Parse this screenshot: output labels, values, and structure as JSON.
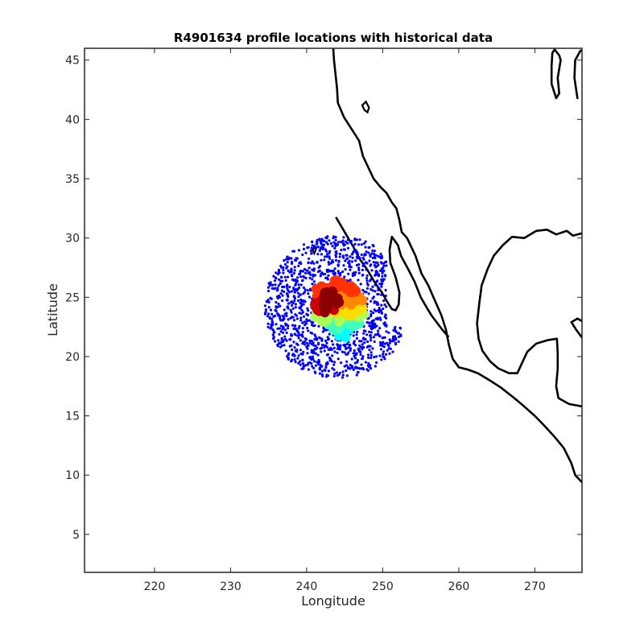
{
  "chart_data": {
    "type": "scatter",
    "title": "R4901634 profile locations with historical data",
    "xlabel": "Longitude",
    "ylabel": "Latitude",
    "xlim": [
      210.8,
      276.2
    ],
    "ylim": [
      1.8,
      46.0
    ],
    "xticks": [
      220,
      230,
      240,
      250,
      260,
      270
    ],
    "yticks": [
      5,
      10,
      15,
      20,
      25,
      30,
      35,
      40,
      45
    ],
    "grid": false,
    "legend": "none",
    "colors": {
      "historical": "#0000ff",
      "coastline": "#000000",
      "colormap": [
        "#00ffff",
        "#44ffbb",
        "#aaff55",
        "#ffdd00",
        "#ff8800",
        "#ff3300",
        "#cc0000",
        "#8b0000"
      ]
    },
    "historical_region": {
      "center": [
        244.0,
        24.2
      ],
      "radius_lon": 9.5,
      "radius_lat": 6.0,
      "approx_points": 1400
    },
    "profile_track": [
      {
        "lon": 244.6,
        "lat": 22.0,
        "c": 0.02
      },
      {
        "lon": 245.3,
        "lat": 22.3,
        "c": 0.06
      },
      {
        "lon": 244.0,
        "lat": 22.6,
        "c": 0.1
      },
      {
        "lon": 245.8,
        "lat": 22.8,
        "c": 0.14
      },
      {
        "lon": 246.4,
        "lat": 23.1,
        "c": 0.18
      },
      {
        "lon": 243.4,
        "lat": 23.0,
        "c": 0.2
      },
      {
        "lon": 242.6,
        "lat": 23.3,
        "c": 0.24
      },
      {
        "lon": 244.8,
        "lat": 23.3,
        "c": 0.27
      },
      {
        "lon": 246.9,
        "lat": 23.6,
        "c": 0.3
      },
      {
        "lon": 241.8,
        "lat": 23.7,
        "c": 0.33
      },
      {
        "lon": 245.6,
        "lat": 23.8,
        "c": 0.36
      },
      {
        "lon": 247.1,
        "lat": 24.2,
        "c": 0.4
      },
      {
        "lon": 243.8,
        "lat": 24.0,
        "c": 0.42
      },
      {
        "lon": 246.2,
        "lat": 24.4,
        "c": 0.46
      },
      {
        "lon": 245.2,
        "lat": 24.7,
        "c": 0.5
      },
      {
        "lon": 246.8,
        "lat": 25.0,
        "c": 0.54
      },
      {
        "lon": 244.6,
        "lat": 25.2,
        "c": 0.58
      },
      {
        "lon": 243.6,
        "lat": 25.5,
        "c": 0.62
      },
      {
        "lon": 245.8,
        "lat": 25.8,
        "c": 0.66
      },
      {
        "lon": 242.6,
        "lat": 25.8,
        "c": 0.7
      },
      {
        "lon": 244.2,
        "lat": 26.1,
        "c": 0.74
      },
      {
        "lon": 241.6,
        "lat": 25.4,
        "c": 0.78
      },
      {
        "lon": 242.2,
        "lat": 24.8,
        "c": 0.82
      },
      {
        "lon": 243.0,
        "lat": 24.3,
        "c": 0.86
      },
      {
        "lon": 241.7,
        "lat": 24.2,
        "c": 0.9
      },
      {
        "lon": 242.8,
        "lat": 25.2,
        "c": 0.94
      },
      {
        "lon": 243.6,
        "lat": 24.7,
        "c": 0.97
      },
      {
        "lon": 242.3,
        "lat": 24.1,
        "c": 1.0
      }
    ],
    "coastlines": [
      [
        [
          243.5,
          46.0
        ],
        [
          243.6,
          45.0
        ],
        [
          243.8,
          43.8
        ],
        [
          244.0,
          42.6
        ],
        [
          244.1,
          41.4
        ],
        [
          244.9,
          40.2
        ],
        [
          245.9,
          39.2
        ],
        [
          246.9,
          38.2
        ],
        [
          247.4,
          36.9
        ],
        [
          248.8,
          35.0
        ],
        [
          249.7,
          34.3
        ],
        [
          250.5,
          33.8
        ],
        [
          251.2,
          33.0
        ],
        [
          251.8,
          32.5
        ],
        [
          252.2,
          31.5
        ],
        [
          252.5,
          30.5
        ],
        [
          253.2,
          30.0
        ],
        [
          254.3,
          28.5
        ],
        [
          255.1,
          27.0
        ],
        [
          256.0,
          26.0
        ],
        [
          256.8,
          24.8
        ],
        [
          257.7,
          23.5
        ],
        [
          258.3,
          22.3
        ],
        [
          258.7,
          21.0
        ],
        [
          259.2,
          19.8
        ],
        [
          260.0,
          19.1
        ],
        [
          261.2,
          18.9
        ],
        [
          262.5,
          18.6
        ],
        [
          263.8,
          18.1
        ],
        [
          265.5,
          17.4
        ],
        [
          267.1,
          16.6
        ],
        [
          268.4,
          15.9
        ],
        [
          270.0,
          15.0
        ],
        [
          271.2,
          14.2
        ],
        [
          272.5,
          13.3
        ],
        [
          273.8,
          12.3
        ],
        [
          274.8,
          11.0
        ],
        [
          275.3,
          10.0
        ],
        [
          276.2,
          9.4
        ]
      ],
      [
        [
          251.2,
          30.1
        ],
        [
          252.0,
          29.4
        ],
        [
          252.4,
          28.5
        ],
        [
          253.4,
          27.3
        ],
        [
          254.2,
          26.3
        ],
        [
          255.0,
          25.0
        ],
        [
          255.9,
          24.0
        ],
        [
          256.5,
          23.4
        ],
        [
          257.8,
          22.3
        ],
        [
          258.6,
          21.7
        ]
      ],
      [
        [
          251.2,
          30.1
        ],
        [
          250.9,
          29.0
        ],
        [
          251.0,
          27.9
        ],
        [
          251.7,
          26.7
        ],
        [
          252.2,
          25.4
        ],
        [
          252.1,
          24.4
        ],
        [
          251.7,
          23.9
        ],
        [
          251.2,
          24.0
        ],
        [
          250.6,
          24.6
        ],
        [
          249.9,
          25.4
        ],
        [
          249.0,
          26.2
        ],
        [
          248.0,
          27.3
        ],
        [
          246.9,
          28.3
        ],
        [
          246.1,
          29.3
        ],
        [
          245.0,
          30.5
        ],
        [
          243.9,
          31.7
        ]
      ],
      [
        [
          276.2,
          30.4
        ],
        [
          275.0,
          30.2
        ],
        [
          274.2,
          30.6
        ],
        [
          272.8,
          30.3
        ],
        [
          271.6,
          30.7
        ],
        [
          270.2,
          30.6
        ],
        [
          268.6,
          30.0
        ],
        [
          267.0,
          30.1
        ],
        [
          265.8,
          29.4
        ],
        [
          264.6,
          28.5
        ],
        [
          263.8,
          27.4
        ],
        [
          263.0,
          26.0
        ],
        [
          262.7,
          24.5
        ],
        [
          262.4,
          22.8
        ],
        [
          262.6,
          21.5
        ],
        [
          263.1,
          20.5
        ],
        [
          264.1,
          19.6
        ],
        [
          265.2,
          19.0
        ],
        [
          266.6,
          18.6
        ],
        [
          267.7,
          18.6
        ],
        [
          268.2,
          19.3
        ],
        [
          269.0,
          20.4
        ],
        [
          270.2,
          21.1
        ],
        [
          271.8,
          21.4
        ],
        [
          272.9,
          21.5
        ],
        [
          273.0,
          20.3
        ],
        [
          273.0,
          19.0
        ],
        [
          272.8,
          17.5
        ],
        [
          273.1,
          16.5
        ],
        [
          274.5,
          16.0
        ],
        [
          276.2,
          15.8
        ]
      ],
      [
        [
          276.2,
          21.6
        ],
        [
          275.4,
          22.3
        ],
        [
          274.8,
          22.9
        ],
        [
          275.6,
          23.2
        ],
        [
          276.2,
          23.0
        ]
      ],
      [
        [
          275.6,
          41.8
        ],
        [
          275.2,
          43.5
        ],
        [
          275.3,
          45.0
        ],
        [
          276.0,
          45.8
        ],
        [
          276.2,
          45.8
        ]
      ],
      [
        [
          272.8,
          41.8
        ],
        [
          272.2,
          43.0
        ],
        [
          272.2,
          44.5
        ],
        [
          272.3,
          45.6
        ],
        [
          272.6,
          45.9
        ],
        [
          273.2,
          45.4
        ],
        [
          273.4,
          45.0
        ],
        [
          273.0,
          43.5
        ],
        [
          273.2,
          42.2
        ],
        [
          272.8,
          41.8
        ]
      ]
    ],
    "islands": [
      [
        [
          241.0,
          28.7
        ],
        [
          241.2,
          29.0
        ],
        [
          241.0,
          29.3
        ],
        [
          240.8,
          29.0
        ],
        [
          241.0,
          28.7
        ]
      ],
      [
        [
          241.3,
          25.3
        ],
        [
          241.5,
          25.6
        ],
        [
          241.2,
          25.8
        ],
        [
          241.0,
          25.5
        ],
        [
          241.3,
          25.3
        ]
      ],
      [
        [
          247.3,
          41.2
        ],
        [
          247.8,
          41.5
        ],
        [
          248.2,
          41.0
        ],
        [
          248.0,
          40.6
        ],
        [
          247.6,
          40.8
        ],
        [
          247.3,
          41.2
        ]
      ]
    ]
  }
}
